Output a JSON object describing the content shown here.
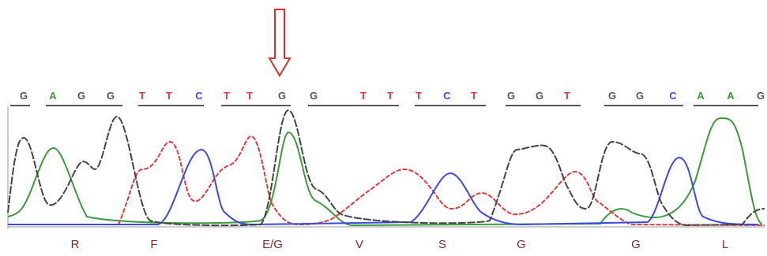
{
  "bases": [
    {
      "letter": "G",
      "color": "#555555"
    },
    {
      "letter": "A",
      "color": "#3a9a3a"
    },
    {
      "letter": "G",
      "color": "#555555"
    },
    {
      "letter": "G",
      "color": "#555555"
    },
    {
      "letter": "T",
      "color": "#e03a3a"
    },
    {
      "letter": "T",
      "color": "#e03a3a"
    },
    {
      "letter": "C",
      "color": "#3a4ae0"
    },
    {
      "letter": "T",
      "color": "#e03a3a"
    },
    {
      "letter": "T",
      "color": "#e03a3a"
    },
    {
      "letter": "G",
      "color": "#555555"
    },
    {
      "letter": "G",
      "color": "#555555"
    },
    {
      "letter": "T",
      "color": "#e03a3a"
    },
    {
      "letter": "T",
      "color": "#e03a3a"
    },
    {
      "letter": "T",
      "color": "#e03a3a"
    },
    {
      "letter": "C",
      "color": "#3a4ae0"
    },
    {
      "letter": "T",
      "color": "#e03a3a"
    },
    {
      "letter": "G",
      "color": "#555555"
    },
    {
      "letter": "G",
      "color": "#555555"
    },
    {
      "letter": "T",
      "color": "#e03a3a"
    },
    {
      "letter": "G",
      "color": "#555555"
    },
    {
      "letter": "G",
      "color": "#555555"
    },
    {
      "letter": "C",
      "color": "#3a4ae0"
    },
    {
      "letter": "A",
      "color": "#3a9a3a"
    },
    {
      "letter": "A",
      "color": "#3a9a3a"
    },
    {
      "letter": "G",
      "color": "#555555"
    }
  ],
  "amino_acids": [
    "R",
    "F",
    "E/G",
    "V",
    "S",
    "G",
    "G",
    "L"
  ]
}
